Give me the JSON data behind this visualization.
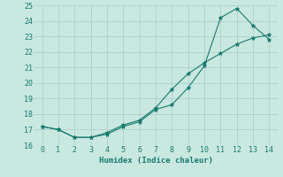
{
  "line1_x": [
    0,
    1,
    2,
    3,
    4,
    5,
    6,
    7,
    8,
    9,
    10,
    11,
    12,
    13,
    14
  ],
  "line1_y": [
    17.2,
    17.0,
    16.5,
    16.5,
    16.7,
    17.2,
    17.5,
    18.3,
    18.6,
    19.7,
    21.1,
    24.2,
    24.8,
    23.7,
    22.8
  ],
  "line2_x": [
    0,
    1,
    2,
    3,
    4,
    5,
    6,
    7,
    8,
    9,
    10,
    11,
    12,
    13,
    14
  ],
  "line2_y": [
    17.2,
    17.0,
    16.5,
    16.5,
    16.8,
    17.3,
    17.6,
    18.4,
    19.6,
    20.6,
    21.3,
    21.9,
    22.5,
    22.9,
    23.1
  ],
  "line_color": "#1a7a6e",
  "bg_color": "#c8e8e0",
  "grid_color": "#a8ccc8",
  "xlabel": "Humidex (Indice chaleur)",
  "xlim": [
    -0.5,
    14.5
  ],
  "ylim": [
    16,
    25
  ],
  "yticks": [
    16,
    17,
    18,
    19,
    20,
    21,
    22,
    23,
    24,
    25
  ],
  "xticks": [
    0,
    1,
    2,
    3,
    4,
    5,
    6,
    7,
    8,
    9,
    10,
    11,
    12,
    13,
    14
  ],
  "xlabel_fontsize": 6.5,
  "tick_fontsize": 6
}
